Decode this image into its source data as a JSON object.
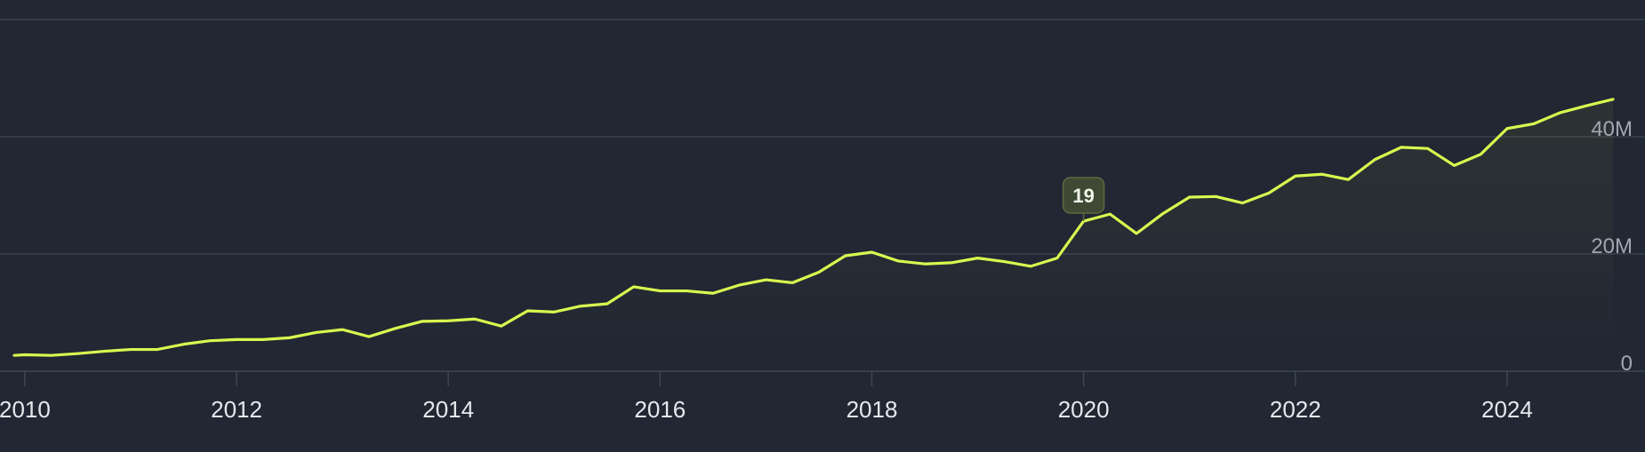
{
  "colors": {
    "background": "#212733",
    "grid": "#3e4554",
    "line": "#d9f84f",
    "axis_text": "#e6e8ee",
    "y_tick_text": "#a1a6b0",
    "marker_fill": "#3f4a35",
    "marker_stroke": "#5b6b3f",
    "marker_text": "#f2f5ea"
  },
  "chart_data": {
    "type": "area",
    "title": "",
    "xlabel": "",
    "ylabel": "",
    "x_ticks": [
      2010,
      2012,
      2014,
      2016,
      2018,
      2020,
      2022,
      2024
    ],
    "x_tick_labels": [
      "2010",
      "2012",
      "2014",
      "2016",
      "2018",
      "2020",
      "2022",
      "2024"
    ],
    "y_ticks": [
      0,
      20000000,
      40000000
    ],
    "y_tick_labels": [
      "0",
      "20M",
      "40M"
    ],
    "xlim": [
      2009.9,
      2025.0
    ],
    "ylim": [
      0,
      60000000
    ],
    "grid": true,
    "legend": "none",
    "annotation": {
      "x": 2020.0,
      "label": "19"
    },
    "series": [
      {
        "x": [
          2009.9,
          2010.0,
          2010.25,
          2010.5,
          2010.75,
          2011.0,
          2011.25,
          2011.5,
          2011.75,
          2012.0,
          2012.25,
          2012.5,
          2012.75,
          2013.0,
          2013.25,
          2013.5,
          2013.75,
          2014.0,
          2014.25,
          2014.5,
          2014.75,
          2015.0,
          2015.25,
          2015.5,
          2015.75,
          2016.0,
          2016.25,
          2016.5,
          2016.75,
          2017.0,
          2017.25,
          2017.5,
          2017.75,
          2018.0,
          2018.25,
          2018.5,
          2018.75,
          2019.0,
          2019.25,
          2019.5,
          2019.75,
          2020.0,
          2020.25,
          2020.5,
          2020.75,
          2021.0,
          2021.25,
          2021.5,
          2021.75,
          2022.0,
          2022.25,
          2022.5,
          2022.75,
          2023.0,
          2023.25,
          2023.5,
          2023.75,
          2024.0,
          2024.25,
          2024.5,
          2024.75,
          2025.0
        ],
        "values": [
          2700000,
          2800000,
          2700000,
          3000000,
          3400000,
          3700000,
          3700000,
          4600000,
          5200000,
          5400000,
          5400000,
          5700000,
          6600000,
          7100000,
          5900000,
          7300000,
          8500000,
          8600000,
          8900000,
          7700000,
          10300000,
          10100000,
          11100000,
          11500000,
          14400000,
          13700000,
          13700000,
          13300000,
          14700000,
          15600000,
          15100000,
          16900000,
          19700000,
          20300000,
          18800000,
          18300000,
          18500000,
          19300000,
          18700000,
          17900000,
          19300000,
          25600000,
          26800000,
          23500000,
          26900000,
          29700000,
          29800000,
          28700000,
          30400000,
          33300000,
          33600000,
          32700000,
          36100000,
          38200000,
          38000000,
          35100000,
          37000000,
          41400000,
          42200000,
          44100000,
          45300000,
          46400000
        ]
      }
    ]
  }
}
